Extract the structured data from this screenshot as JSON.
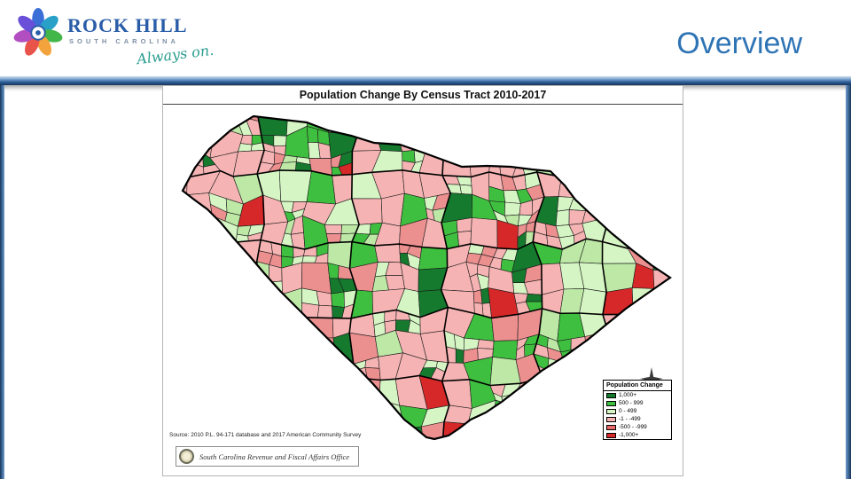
{
  "slide": {
    "title": "Overview",
    "accent_color": "#2E74B5"
  },
  "logo": {
    "name": "ROCK HILL",
    "subtitle": "SOUTH CAROLINA",
    "tagline": "Always on."
  },
  "map": {
    "title": "Population Change By Census Tract 2010-2017",
    "source": "Source: 2010 P.L. 94-171 database and 2017 American Community Survey",
    "agency": "South Carolina Revenue and Fiscal Affairs Office",
    "legend": {
      "title": "Population Change",
      "items": [
        {
          "label": "1,000+",
          "color": "#157a2e"
        },
        {
          "label": "500 - 999",
          "color": "#3fbf3f"
        },
        {
          "label": "0 - 499",
          "color": "#d6f5c4"
        },
        {
          "label": "-1 - -499",
          "color": "#f5b3b3"
        },
        {
          "label": "-500 - -999",
          "color": "#e96a6a"
        },
        {
          "label": "-1,000+",
          "color": "#d62828"
        }
      ]
    },
    "palette": [
      {
        "color": "#f5b3b3",
        "weight": 33
      },
      {
        "color": "#d6f5c4",
        "weight": 26
      },
      {
        "color": "#3fbf3f",
        "weight": 13
      },
      {
        "color": "#bde8a6",
        "weight": 9
      },
      {
        "color": "#ec8f8f",
        "weight": 11
      },
      {
        "color": "#157a2e",
        "weight": 6
      },
      {
        "color": "#d62828",
        "weight": 2
      }
    ]
  }
}
